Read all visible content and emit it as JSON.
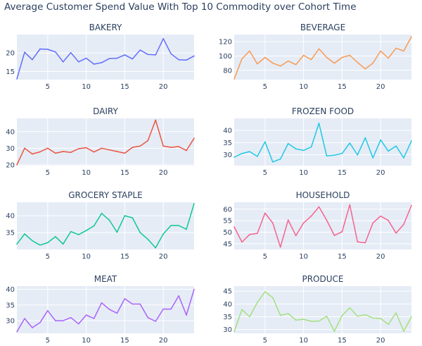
{
  "title": "Average Customer Spend Value With Top 10 Commodity over Cohort Time",
  "chart_data": [
    {
      "type": "line",
      "title": "BAKERY",
      "color": "#636efa",
      "xlim": [
        1,
        24
      ],
      "ylim": [
        12.8,
        25
      ],
      "xticks": [
        5,
        10,
        15,
        20
      ],
      "yticks": [
        15,
        20
      ],
      "x": [
        1,
        2,
        3,
        4,
        5,
        6,
        7,
        8,
        9,
        10,
        11,
        12,
        13,
        14,
        15,
        16,
        17,
        18,
        19,
        20,
        21,
        22,
        23,
        24
      ],
      "y": [
        13,
        20.2,
        18.2,
        21.1,
        21,
        20.3,
        17.6,
        20.1,
        17.6,
        18.6,
        17,
        17.4,
        18.5,
        18.6,
        19.5,
        18.4,
        20.8,
        19.6,
        19.5,
        23.9,
        19.8,
        18.2,
        18.1,
        19.2
      ]
    },
    {
      "type": "line",
      "title": "BEVERAGE",
      "color": "#fa9a50",
      "xlim": [
        1,
        24
      ],
      "ylim": [
        67,
        130
      ],
      "xticks": [
        5,
        10,
        15,
        20
      ],
      "yticks": [
        80,
        100,
        120
      ],
      "x": [
        1,
        2,
        3,
        4,
        5,
        6,
        7,
        8,
        9,
        10,
        11,
        12,
        13,
        14,
        15,
        16,
        17,
        18,
        19,
        20,
        21,
        22,
        23,
        24
      ],
      "y": [
        68,
        96,
        107,
        89,
        98,
        90,
        86,
        93,
        88,
        101,
        95,
        110,
        98,
        90,
        98,
        101,
        91,
        82,
        90,
        107,
        97,
        111,
        107,
        127
      ]
    },
    {
      "type": "line",
      "title": "DAIRY",
      "color": "#e9553f",
      "xlim": [
        1,
        24
      ],
      "ylim": [
        19.5,
        48
      ],
      "xticks": [
        5,
        10,
        15,
        20
      ],
      "yticks": [
        20,
        30,
        40
      ],
      "x": [
        1,
        2,
        3,
        4,
        5,
        6,
        7,
        8,
        9,
        10,
        11,
        12,
        13,
        14,
        15,
        16,
        17,
        18,
        19,
        20,
        21,
        22,
        23,
        24
      ],
      "y": [
        20,
        30,
        26.5,
        27.8,
        30,
        27,
        28,
        27.5,
        29.7,
        30.3,
        27.7,
        30,
        29,
        28,
        27,
        30.5,
        31.3,
        34.6,
        47,
        31.3,
        30.5,
        31,
        28.6,
        36
      ]
    },
    {
      "type": "line",
      "title": "FROZEN FOOD",
      "color": "#1ec8e6",
      "xlim": [
        1,
        24
      ],
      "ylim": [
        25.5,
        45
      ],
      "xticks": [
        5,
        10,
        15,
        20
      ],
      "yticks": [
        30,
        35,
        40
      ],
      "x": [
        1,
        2,
        3,
        4,
        5,
        6,
        7,
        8,
        9,
        10,
        11,
        12,
        13,
        14,
        15,
        16,
        17,
        18,
        19,
        20,
        21,
        22,
        23,
        24
      ],
      "y": [
        29,
        30.5,
        31.3,
        29.3,
        35.3,
        27,
        28.2,
        34.6,
        32.4,
        31.8,
        33.2,
        43,
        29.5,
        29.8,
        30.5,
        34.8,
        29.9,
        37,
        28.7,
        36.1,
        31.5,
        33.6,
        28.7,
        35.7
      ]
    },
    {
      "type": "line",
      "title": "GROCERY STAPLE",
      "color": "#10c794",
      "xlim": [
        1,
        24
      ],
      "ylim": [
        30,
        44
      ],
      "xticks": [
        5,
        10,
        15,
        20
      ],
      "yticks": [
        35,
        40
      ],
      "x": [
        1,
        2,
        3,
        4,
        5,
        6,
        7,
        8,
        9,
        10,
        11,
        12,
        13,
        14,
        15,
        16,
        17,
        18,
        19,
        20,
        21,
        22,
        23,
        24
      ],
      "y": [
        31.6,
        34.6,
        32.6,
        31.3,
        32,
        33.8,
        31.6,
        35.3,
        34.4,
        35.6,
        37,
        40.7,
        38.7,
        35.1,
        40,
        39.4,
        35,
        33,
        30.5,
        34.6,
        37.1,
        37.1,
        36,
        43.6
      ]
    },
    {
      "type": "line",
      "title": "HOUSEHOLD",
      "color": "#f5638e",
      "xlim": [
        1,
        24
      ],
      "ylim": [
        42.5,
        63
      ],
      "xticks": [
        5,
        10,
        15,
        20
      ],
      "yticks": [
        45,
        50,
        55,
        60
      ],
      "x": [
        1,
        2,
        3,
        4,
        5,
        6,
        7,
        8,
        9,
        10,
        11,
        12,
        13,
        14,
        15,
        16,
        17,
        18,
        19,
        20,
        21,
        22,
        23,
        24
      ],
      "y": [
        52.3,
        45.7,
        49,
        49.5,
        58.3,
        54,
        43.5,
        55.3,
        48.5,
        54,
        57,
        61,
        55.2,
        48.6,
        50.2,
        61.9,
        45.8,
        45.4,
        54,
        57,
        55.1,
        49.6,
        53.4,
        61.6
      ]
    },
    {
      "type": "line",
      "title": "MEAT",
      "color": "#ab63fa",
      "xlim": [
        1,
        24
      ],
      "ylim": [
        26,
        41
      ],
      "xticks": [
        5,
        10,
        15,
        20
      ],
      "yticks": [
        30,
        35,
        40
      ],
      "x": [
        1,
        2,
        3,
        4,
        5,
        6,
        7,
        8,
        9,
        10,
        11,
        12,
        13,
        14,
        15,
        16,
        17,
        18,
        19,
        20,
        21,
        22,
        23,
        24
      ],
      "y": [
        26.5,
        30.7,
        27.8,
        29.4,
        33.2,
        30,
        30,
        31,
        29,
        31.8,
        30.7,
        35.7,
        33.6,
        32.4,
        37,
        35.3,
        35.3,
        31,
        29.8,
        33.7,
        33.7,
        37.9,
        31.8,
        40
      ]
    },
    {
      "type": "line",
      "title": "PRODUCE",
      "color": "#a3e07e",
      "xlim": [
        1,
        24
      ],
      "ylim": [
        28.5,
        47
      ],
      "xticks": [
        5,
        10,
        15,
        20
      ],
      "yticks": [
        30,
        35,
        40,
        45
      ],
      "x": [
        1,
        2,
        3,
        4,
        5,
        6,
        7,
        8,
        9,
        10,
        11,
        12,
        13,
        14,
        15,
        16,
        17,
        18,
        19,
        20,
        21,
        22,
        23,
        24
      ],
      "y": [
        29.2,
        37.8,
        35,
        40.6,
        44.8,
        42.5,
        35.5,
        36.3,
        33.7,
        34,
        33.2,
        33.3,
        35.2,
        29.3,
        35.5,
        38.5,
        35.2,
        35.8,
        34.5,
        34.3,
        32,
        36.5,
        29.3,
        35
      ]
    }
  ]
}
